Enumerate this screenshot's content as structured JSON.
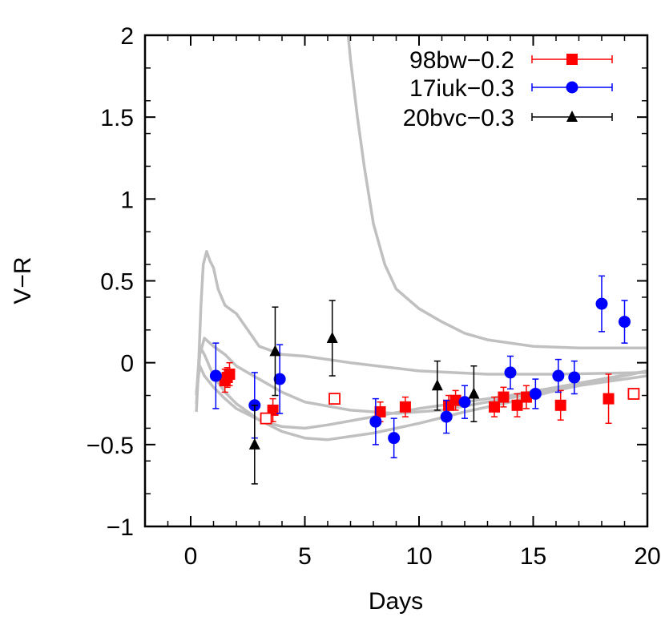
{
  "chart_data": {
    "type": "scatter",
    "xlabel": "Days",
    "ylabel": "V−R",
    "xlim": [
      -2,
      20
    ],
    "ylim": [
      -1,
      2
    ],
    "xticks": [
      0,
      5,
      10,
      15,
      20
    ],
    "xtick_labels": [
      "0",
      "5",
      "10",
      "15",
      "20"
    ],
    "yticks": [
      -1,
      -0.5,
      0,
      0.5,
      1,
      1.5,
      2
    ],
    "ytick_labels": [
      "−1",
      "−0.5",
      "0",
      "0.5",
      "1",
      "1.5",
      "2"
    ],
    "grid": false,
    "legend_position": "top-right",
    "colors": {
      "98bw": "#ff0000",
      "17iuk": "#0000ff",
      "20bvc": "#000000",
      "models": "#c0c0c0"
    },
    "series": [
      {
        "name": "98bw−0.2",
        "marker": "square",
        "color": "#ff0000",
        "points": [
          {
            "x": 1.5,
            "y": -0.11,
            "err": 0.07
          },
          {
            "x": 1.6,
            "y": -0.09,
            "err": 0.06
          },
          {
            "x": 1.7,
            "y": -0.07,
            "err": 0.07
          },
          {
            "x": 3.6,
            "y": -0.29,
            "err": 0.07
          },
          {
            "x": 8.3,
            "y": -0.3,
            "err": 0.06
          },
          {
            "x": 9.4,
            "y": -0.27,
            "err": 0.06
          },
          {
            "x": 11.3,
            "y": -0.26,
            "err": 0.06
          },
          {
            "x": 11.6,
            "y": -0.23,
            "err": 0.06
          },
          {
            "x": 13.3,
            "y": -0.27,
            "err": 0.06
          },
          {
            "x": 13.7,
            "y": -0.21,
            "err": 0.06
          },
          {
            "x": 14.3,
            "y": -0.26,
            "err": 0.07
          },
          {
            "x": 14.7,
            "y": -0.21,
            "err": 0.07
          },
          {
            "x": 16.2,
            "y": -0.26,
            "err": 0.09
          },
          {
            "x": 18.3,
            "y": -0.22,
            "err": 0.15
          }
        ]
      },
      {
        "name": "98bw open",
        "marker": "open-square",
        "color": "#ff0000",
        "points": [
          {
            "x": 3.3,
            "y": -0.34,
            "err": 0
          },
          {
            "x": 6.3,
            "y": -0.22,
            "err": 0
          },
          {
            "x": 19.4,
            "y": -0.19,
            "err": 0
          }
        ]
      },
      {
        "name": "17iuk−0.3",
        "marker": "circle",
        "color": "#0000ff",
        "points": [
          {
            "x": 1.1,
            "y": -0.08,
            "err": 0.2
          },
          {
            "x": 2.8,
            "y": -0.26,
            "err": 0.2
          },
          {
            "x": 3.9,
            "y": -0.1,
            "err": 0.21
          },
          {
            "x": 8.1,
            "y": -0.36,
            "err": 0.14
          },
          {
            "x": 8.9,
            "y": -0.46,
            "err": 0.12
          },
          {
            "x": 11.2,
            "y": -0.33,
            "err": 0.1
          },
          {
            "x": 12.0,
            "y": -0.24,
            "err": 0.1
          },
          {
            "x": 14.0,
            "y": -0.06,
            "err": 0.1
          },
          {
            "x": 15.1,
            "y": -0.19,
            "err": 0.09
          },
          {
            "x": 16.1,
            "y": -0.08,
            "err": 0.1
          },
          {
            "x": 16.8,
            "y": -0.09,
            "err": 0.1
          },
          {
            "x": 18.0,
            "y": 0.36,
            "err": 0.17
          },
          {
            "x": 19.0,
            "y": 0.25,
            "err": 0.13
          }
        ]
      },
      {
        "name": "20bvc−0.3",
        "marker": "triangle",
        "color": "#000000",
        "points": [
          {
            "x": 2.8,
            "y": -0.5,
            "err": 0.24
          },
          {
            "x": 3.7,
            "y": 0.07,
            "err": 0.27
          },
          {
            "x": 6.2,
            "y": 0.15,
            "err": 0.23
          },
          {
            "x": 10.8,
            "y": -0.14,
            "err": 0.15
          },
          {
            "x": 12.4,
            "y": -0.19,
            "err": 0.17
          }
        ]
      }
    ],
    "model_curves": [
      {
        "points": [
          [
            0.25,
            -0.3
          ],
          [
            0.35,
            0.0
          ],
          [
            0.45,
            0.35
          ],
          [
            0.55,
            0.6
          ],
          [
            0.7,
            0.68
          ],
          [
            0.85,
            0.62
          ],
          [
            1.0,
            0.58
          ],
          [
            1.2,
            0.45
          ],
          [
            1.5,
            0.35
          ],
          [
            2.0,
            0.3
          ],
          [
            2.5,
            0.2
          ],
          [
            3.0,
            0.1
          ],
          [
            4.0,
            0.05
          ],
          [
            5.0,
            0.04
          ],
          [
            7.0,
            0.0
          ],
          [
            10.0,
            -0.05
          ],
          [
            13.0,
            -0.07
          ],
          [
            16.0,
            -0.07
          ],
          [
            20.0,
            -0.06
          ]
        ]
      },
      {
        "points": [
          [
            0.25,
            -0.25
          ],
          [
            0.4,
            0.05
          ],
          [
            0.6,
            0.15
          ],
          [
            1.0,
            0.1
          ],
          [
            1.5,
            0.05
          ],
          [
            2.0,
            -0.02
          ],
          [
            3.0,
            -0.1
          ],
          [
            4.0,
            -0.18
          ],
          [
            5.0,
            -0.24
          ],
          [
            7.0,
            -0.29
          ],
          [
            9.0,
            -0.31
          ],
          [
            11.0,
            -0.29
          ],
          [
            13.0,
            -0.24
          ],
          [
            15.0,
            -0.19
          ],
          [
            17.0,
            -0.14
          ],
          [
            20.0,
            -0.08
          ]
        ]
      },
      {
        "points": [
          [
            0.25,
            -0.2
          ],
          [
            0.4,
            0.1
          ],
          [
            0.6,
            0.05
          ],
          [
            1.0,
            -0.08
          ],
          [
            1.5,
            -0.18
          ],
          [
            2.0,
            -0.25
          ],
          [
            3.0,
            -0.35
          ],
          [
            4.0,
            -0.42
          ],
          [
            5.0,
            -0.46
          ],
          [
            6.0,
            -0.47
          ],
          [
            8.0,
            -0.43
          ],
          [
            10.0,
            -0.37
          ],
          [
            12.0,
            -0.3
          ],
          [
            14.0,
            -0.24
          ],
          [
            16.0,
            -0.17
          ],
          [
            18.0,
            -0.11
          ],
          [
            20.0,
            -0.05
          ]
        ]
      },
      {
        "points": [
          [
            0.25,
            -0.18
          ],
          [
            0.4,
            -0.02
          ],
          [
            0.6,
            -0.08
          ],
          [
            1.0,
            -0.15
          ],
          [
            1.5,
            -0.22
          ],
          [
            2.0,
            -0.28
          ],
          [
            3.0,
            -0.35
          ],
          [
            4.0,
            -0.39
          ],
          [
            5.0,
            -0.4
          ],
          [
            6.0,
            -0.38
          ],
          [
            8.0,
            -0.33
          ],
          [
            10.0,
            -0.28
          ],
          [
            12.0,
            -0.24
          ],
          [
            14.0,
            -0.2
          ],
          [
            16.0,
            -0.15
          ],
          [
            18.0,
            -0.1
          ],
          [
            20.0,
            -0.05
          ]
        ]
      },
      {
        "points": [
          [
            6.9,
            2.0
          ],
          [
            7.0,
            1.85
          ],
          [
            7.3,
            1.5
          ],
          [
            7.6,
            1.2
          ],
          [
            8.0,
            0.85
          ],
          [
            8.5,
            0.6
          ],
          [
            9.0,
            0.45
          ],
          [
            10.0,
            0.33
          ],
          [
            11.0,
            0.25
          ],
          [
            12.0,
            0.18
          ],
          [
            13.0,
            0.14
          ],
          [
            14.0,
            0.12
          ],
          [
            15.0,
            0.1
          ],
          [
            17.0,
            0.09
          ],
          [
            19.0,
            0.09
          ],
          [
            20.0,
            0.09
          ]
        ]
      }
    ]
  }
}
